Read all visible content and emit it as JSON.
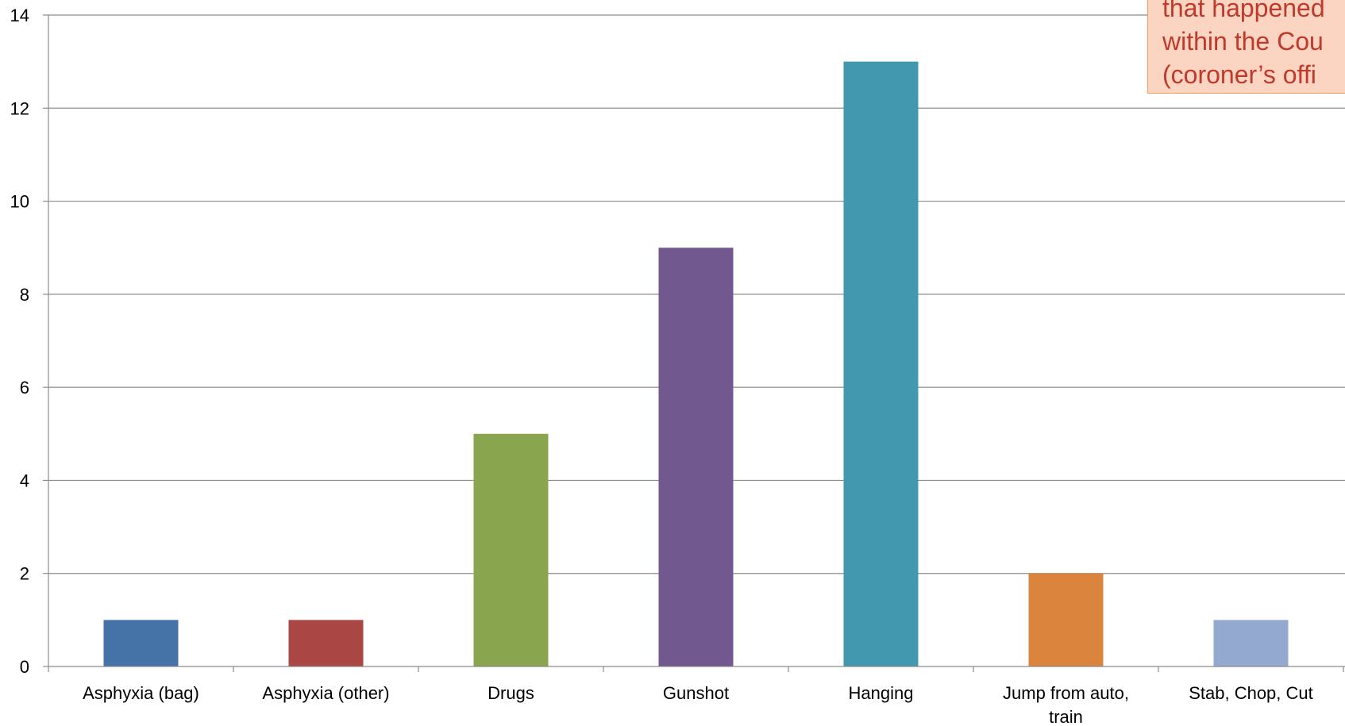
{
  "chart_data": {
    "type": "bar",
    "categories": [
      "Asphyxia (bag)",
      "Asphyxia (other)",
      "Drugs",
      "Gunshot",
      "Hanging",
      "Jump from auto, train",
      "Stab, Chop, Cut"
    ],
    "category_lines": [
      [
        "Asphyxia (bag)"
      ],
      [
        "Asphyxia (other)"
      ],
      [
        "Drugs"
      ],
      [
        "Gunshot"
      ],
      [
        "Hanging"
      ],
      [
        "Jump from auto,",
        "train"
      ],
      [
        "Stab, Chop, Cut"
      ]
    ],
    "values": [
      1,
      1,
      5,
      9,
      13,
      2,
      1
    ],
    "colors": [
      "#4572a7",
      "#aa4643",
      "#89a54e",
      "#71588f",
      "#4198af",
      "#db843d",
      "#93a9cf"
    ],
    "yticks": [
      0,
      2,
      4,
      6,
      8,
      10,
      12,
      14
    ],
    "ylim": [
      0,
      14
    ],
    "grid": true,
    "title": "",
    "xlabel": "",
    "ylabel": ""
  },
  "callout": {
    "lines": [
      "that happened",
      "within the Cou",
      "(coroner’s offi"
    ]
  }
}
